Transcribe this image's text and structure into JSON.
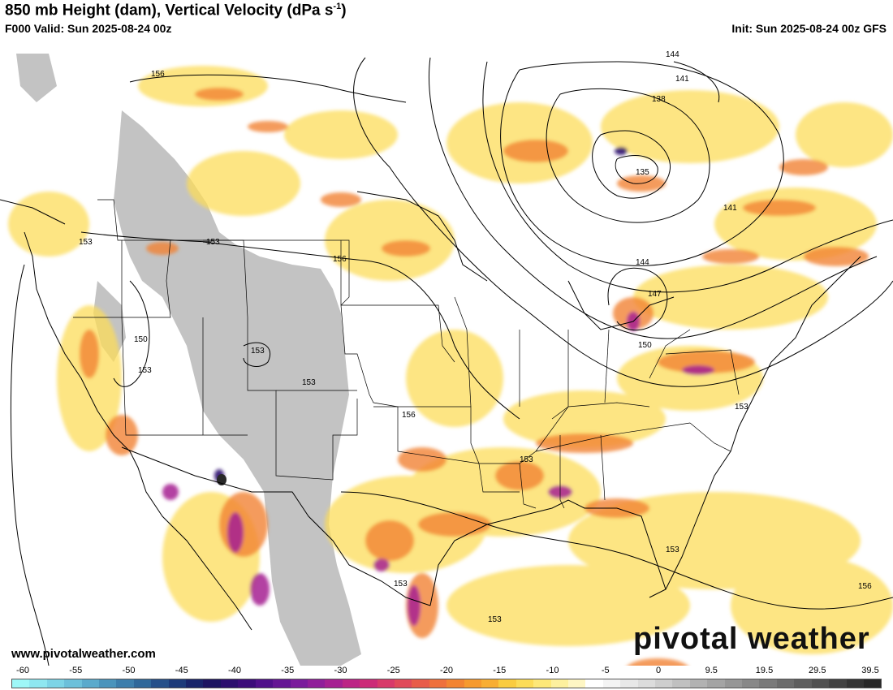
{
  "header": {
    "title": "850 mb Height (dam), Vertical Velocity (dPa s",
    "title_sup": "-1",
    "title_close": ")",
    "valid": "F000 Valid: Sun 2025-08-24 00z",
    "init": "Init: Sun 2025-08-24 00z GFS"
  },
  "map": {
    "region": "Continental United States",
    "height_contour_labels": [
      "156",
      "153",
      "153",
      "156",
      "144",
      "141",
      "138",
      "135",
      "141",
      "144",
      "147",
      "150",
      "150",
      "153",
      "153",
      "153",
      "156",
      "153",
      "153",
      "153",
      "153",
      "156",
      "153"
    ],
    "colors": {
      "land_gray": "#c0c0c0",
      "background": "#ffffff",
      "contour": "#000000"
    }
  },
  "colorbar": {
    "labels": [
      "-60",
      "-55",
      "-50",
      "-45",
      "-40",
      "-35",
      "-30",
      "-25",
      "-20",
      "-15",
      "-10",
      "-5",
      "0",
      "9.5",
      "19.5",
      "29.5",
      "39.5"
    ],
    "colors": [
      "#9ef7f7",
      "#8ee7f0",
      "#7cd4e6",
      "#6cc0da",
      "#5aaacc",
      "#4a94bc",
      "#3c7eac",
      "#2f689a",
      "#25508a",
      "#1c3a7a",
      "#18246a",
      "#1c1460",
      "#2c0e6e",
      "#3c0c7a",
      "#50108a",
      "#641694",
      "#7a1c9c",
      "#901e9a",
      "#a62092",
      "#bc2486",
      "#cc2c78",
      "#d83a6a",
      "#e04a5a",
      "#e85c4a",
      "#ee703c",
      "#f28432",
      "#f69a2e",
      "#f8ae34",
      "#facc40",
      "#fcdc58",
      "#fde878",
      "#fdf09e",
      "#fef6c4",
      "#ffffff",
      "#f4f4f4",
      "#e8e8e8",
      "#dcdcdc",
      "#cecece",
      "#c0c0c0",
      "#b2b2b2",
      "#a4a4a4",
      "#969696",
      "#888888",
      "#7a7a7a",
      "#6c6c6c",
      "#5e5e5e",
      "#505050",
      "#424242",
      "#343434",
      "#282828"
    ]
  },
  "credit": "www.pivotalweather.com",
  "logo": "pivotal weather"
}
